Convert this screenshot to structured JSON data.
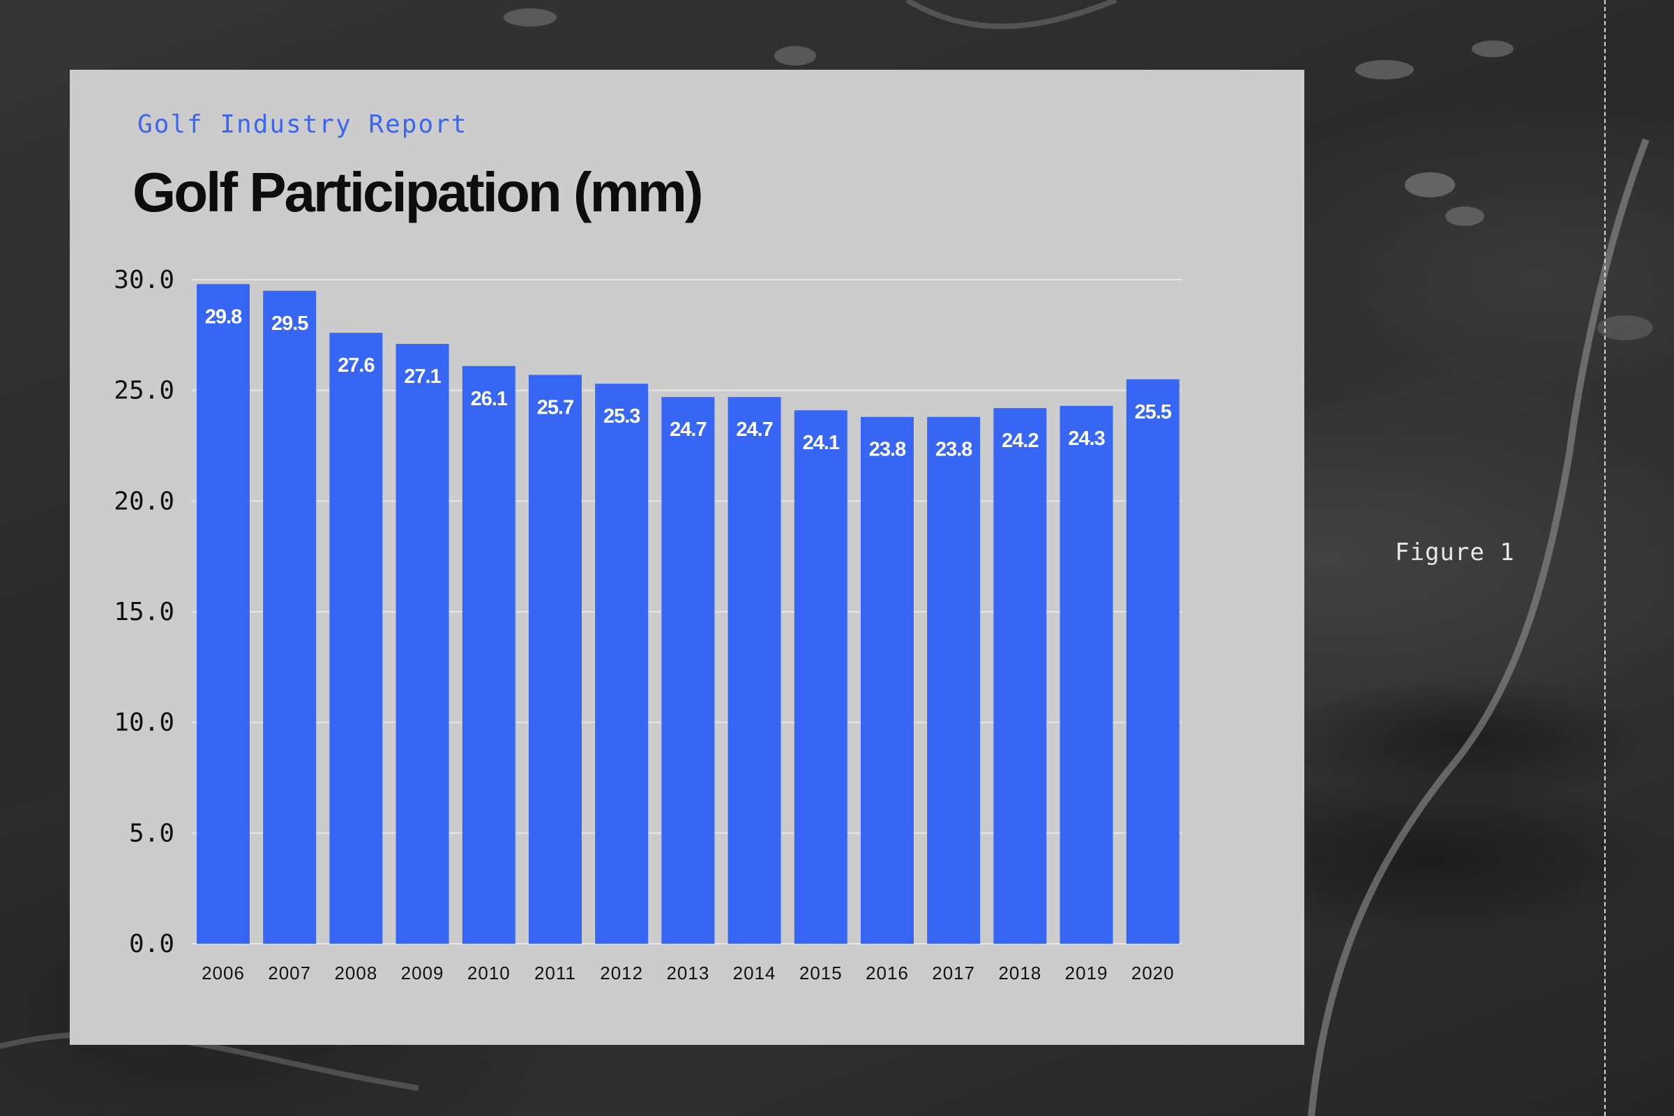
{
  "header": {
    "eyebrow": "Golf Industry Report",
    "title": "Golf Participation (mm)"
  },
  "side": {
    "figure_label": "Figure 1"
  },
  "colors": {
    "bar": "#3766F4",
    "card_background": "#CCCCCC",
    "eyebrow": "#3A66F0",
    "grid": "#E6E6E6",
    "bar_label": "#FFFFFF",
    "axis_text": "#111111"
  },
  "chart_data": {
    "type": "bar",
    "categories": [
      "2006",
      "2007",
      "2008",
      "2009",
      "2010",
      "2011",
      "2012",
      "2013",
      "2014",
      "2015",
      "2016",
      "2017",
      "2018",
      "2019",
      "2020"
    ],
    "values": [
      29.8,
      29.5,
      27.6,
      27.1,
      26.1,
      25.7,
      25.3,
      24.7,
      24.7,
      24.1,
      23.8,
      23.8,
      24.2,
      24.3,
      25.5
    ],
    "value_labels": [
      "29.8",
      "29.5",
      "27.6",
      "27.1",
      "26.1",
      "25.7",
      "25.3",
      "24.7",
      "24.7",
      "24.1",
      "23.8",
      "23.8",
      "24.2",
      "24.3",
      "25.5"
    ],
    "y_ticks": [
      "0.0",
      "5.0",
      "10.0",
      "15.0",
      "20.0",
      "25.0",
      "30.0"
    ],
    "ylim": [
      0,
      30
    ],
    "grid": true,
    "legend": "none"
  }
}
